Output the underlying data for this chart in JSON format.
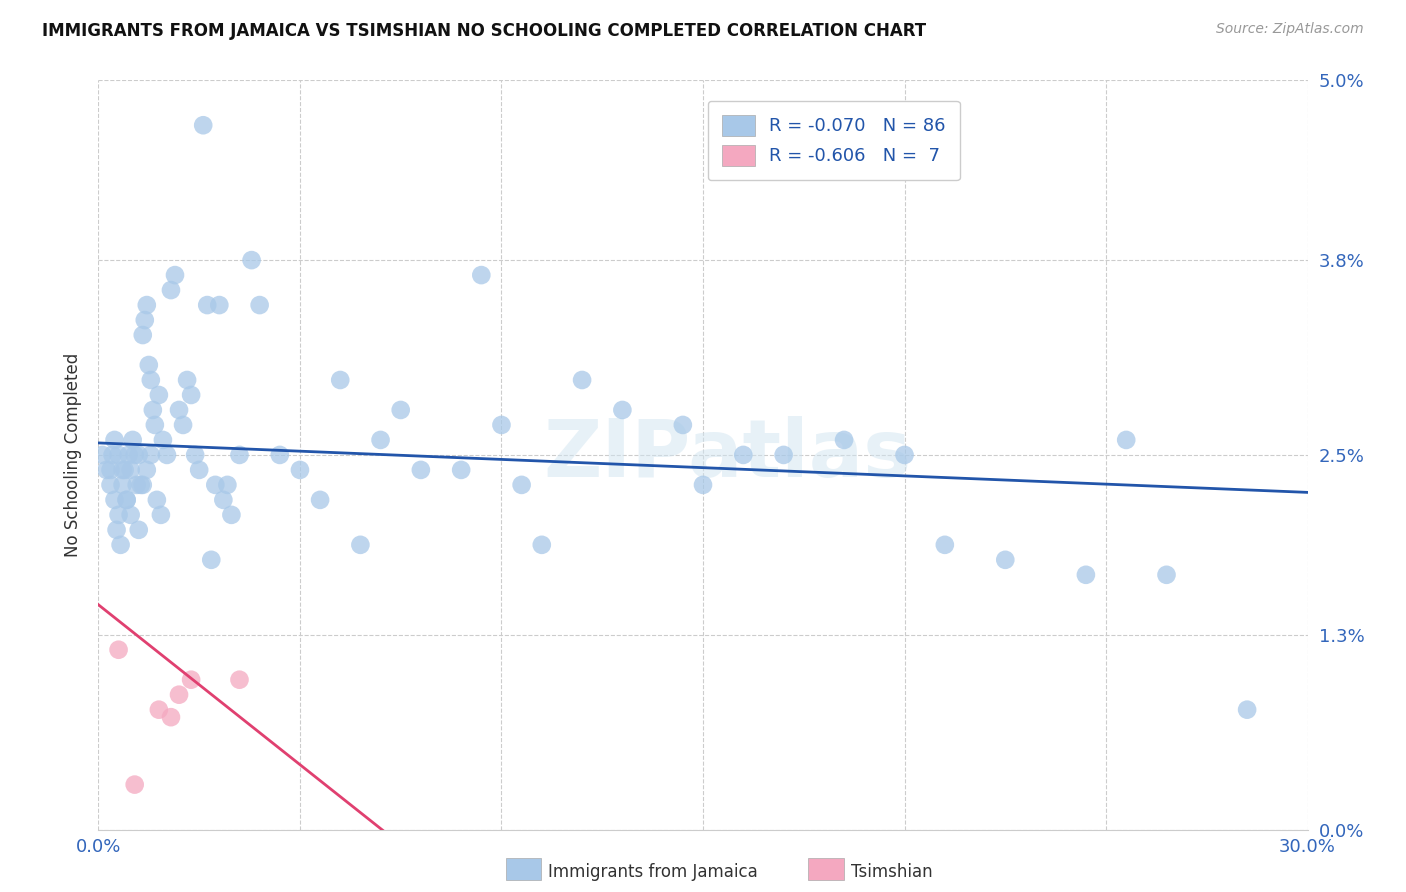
{
  "title": "IMMIGRANTS FROM JAMAICA VS TSIMSHIAN NO SCHOOLING COMPLETED CORRELATION CHART",
  "source": "Source: ZipAtlas.com",
  "ylabel": "No Schooling Completed",
  "ylabel_vals": [
    0.0,
    1.3,
    2.5,
    3.8,
    5.0
  ],
  "xlim": [
    0.0,
    30.0
  ],
  "ylim": [
    0.0,
    5.0
  ],
  "jamaica_R": "-0.070",
  "jamaica_N": "86",
  "tsimshian_R": "-0.606",
  "tsimshian_N": "7",
  "jamaica_color": "#a8c8e8",
  "tsimshian_color": "#f4a8c0",
  "jamaica_line_color": "#2255aa",
  "tsimshian_line_color": "#e04070",
  "watermark": "ZIPatlas",
  "jamaica_scatter_x": [
    0.1,
    0.2,
    0.3,
    0.35,
    0.4,
    0.45,
    0.5,
    0.55,
    0.6,
    0.65,
    0.7,
    0.75,
    0.8,
    0.85,
    0.9,
    0.95,
    1.0,
    1.05,
    1.1,
    1.15,
    1.2,
    1.25,
    1.3,
    1.35,
    1.4,
    1.5,
    1.6,
    1.7,
    1.8,
    1.9,
    2.0,
    2.1,
    2.2,
    2.3,
    2.4,
    2.5,
    2.6,
    2.7,
    2.8,
    3.0,
    3.2,
    3.5,
    3.8,
    4.0,
    4.5,
    5.0,
    5.5,
    6.0,
    6.5,
    7.0,
    7.5,
    8.0,
    9.0,
    9.5,
    10.0,
    10.5,
    11.0,
    12.0,
    13.0,
    14.5,
    15.0,
    16.0,
    17.0,
    18.5,
    20.0,
    21.0,
    22.5,
    24.5,
    25.5,
    26.5,
    1.45,
    1.55,
    0.3,
    0.4,
    0.5,
    0.6,
    0.7,
    0.8,
    1.0,
    1.1,
    1.2,
    1.3,
    2.9,
    3.1,
    3.3,
    28.5
  ],
  "jamaica_scatter_y": [
    2.5,
    2.4,
    2.3,
    2.5,
    2.2,
    2.0,
    2.1,
    1.9,
    2.3,
    2.4,
    2.2,
    2.5,
    2.4,
    2.6,
    2.5,
    2.3,
    2.5,
    2.3,
    3.3,
    3.4,
    3.5,
    3.1,
    3.0,
    2.8,
    2.7,
    2.9,
    2.6,
    2.5,
    3.6,
    3.7,
    2.8,
    2.7,
    3.0,
    2.9,
    2.5,
    2.4,
    4.7,
    3.5,
    1.8,
    3.5,
    2.3,
    2.5,
    3.8,
    3.5,
    2.5,
    2.4,
    2.2,
    3.0,
    1.9,
    2.6,
    2.8,
    2.4,
    2.4,
    3.7,
    2.7,
    2.3,
    1.9,
    3.0,
    2.8,
    2.7,
    2.3,
    2.5,
    2.5,
    2.6,
    2.5,
    1.9,
    1.8,
    1.7,
    2.6,
    1.7,
    2.2,
    2.1,
    2.4,
    2.6,
    2.5,
    2.4,
    2.2,
    2.1,
    2.0,
    2.3,
    2.4,
    2.5,
    2.3,
    2.2,
    2.1,
    0.8
  ],
  "tsimshian_scatter_x": [
    0.5,
    1.5,
    1.8,
    2.0,
    2.3,
    3.5,
    0.9
  ],
  "tsimshian_scatter_y": [
    1.2,
    0.8,
    0.75,
    0.9,
    1.0,
    1.0,
    0.3
  ],
  "jamaica_line_x": [
    0.0,
    30.0
  ],
  "jamaica_line_y": [
    2.58,
    2.25
  ],
  "tsimshian_line_x": [
    0.0,
    7.5
  ],
  "tsimshian_line_y": [
    1.5,
    -0.1
  ]
}
